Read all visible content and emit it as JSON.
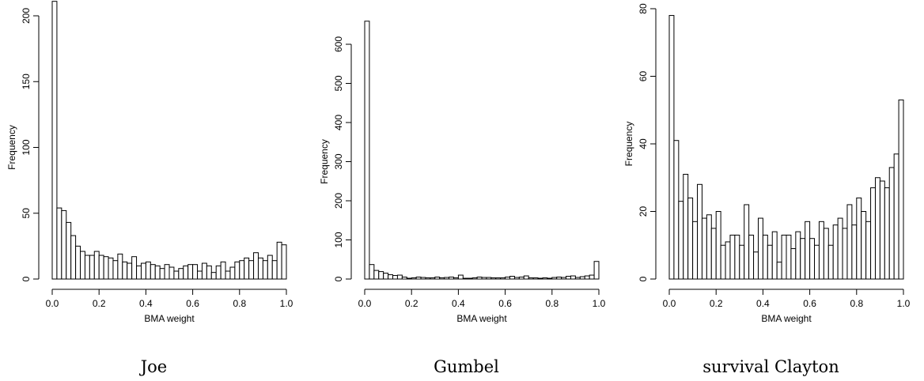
{
  "figure": {
    "panels": [
      "Joe",
      "Gumbel",
      "survival Clayton"
    ]
  },
  "chart_data": [
    {
      "type": "bar",
      "subtype": "histogram",
      "title": "Joe",
      "xlabel": "BMA weight",
      "ylabel": "Frequency",
      "xlim": [
        0,
        1
      ],
      "ylim": [
        0,
        210
      ],
      "xticks": [
        0.0,
        0.2,
        0.4,
        0.6,
        0.8,
        1.0
      ],
      "xtick_labels": [
        "0.0",
        "0.2",
        "0.4",
        "0.6",
        "0.8",
        "1.0"
      ],
      "yticks": [
        0,
        50,
        100,
        150,
        200
      ],
      "ytick_labels": [
        "0",
        "50",
        "100",
        "150",
        "200"
      ],
      "bin_width": 0.02,
      "values": [
        211,
        54,
        52,
        43,
        33,
        25,
        21,
        18,
        18,
        21,
        18,
        17,
        16,
        14,
        19,
        13,
        12,
        17,
        10,
        12,
        13,
        11,
        10,
        8,
        11,
        9,
        6,
        8,
        10,
        11,
        11,
        6,
        12,
        10,
        5,
        10,
        13,
        6,
        9,
        13,
        14,
        16,
        14,
        20,
        16,
        14,
        18,
        14,
        28,
        26
      ]
    },
    {
      "type": "bar",
      "subtype": "histogram",
      "title": "Gumbel",
      "xlabel": "BMA weight",
      "ylabel": "Frequency",
      "xlim": [
        0,
        1
      ],
      "ylim": [
        0,
        650
      ],
      "xticks": [
        0.0,
        0.2,
        0.4,
        0.6,
        0.8,
        1.0
      ],
      "xtick_labels": [
        "0.0",
        "0.2",
        "0.4",
        "0.6",
        "0.8",
        "1.0"
      ],
      "yticks": [
        0,
        100,
        200,
        300,
        400,
        500,
        600
      ],
      "ytick_labels": [
        "0",
        "100",
        "200",
        "300",
        "400",
        "500",
        "600"
      ],
      "bin_width": 0.02,
      "values": [
        659,
        37,
        22,
        19,
        15,
        11,
        9,
        10,
        5,
        2,
        3,
        5,
        4,
        3,
        3,
        5,
        3,
        4,
        5,
        3,
        10,
        2,
        2,
        3,
        5,
        4,
        4,
        3,
        3,
        3,
        5,
        7,
        4,
        5,
        8,
        3,
        3,
        2,
        3,
        2,
        4,
        5,
        4,
        7,
        8,
        4,
        6,
        8,
        10,
        45
      ]
    },
    {
      "type": "bar",
      "subtype": "histogram",
      "title": "survival Clayton",
      "xlabel": "BMA weight",
      "ylabel": "Frequency",
      "xlim": [
        0,
        1
      ],
      "ylim": [
        0,
        80
      ],
      "xticks": [
        0.0,
        0.2,
        0.4,
        0.6,
        0.8,
        1.0
      ],
      "xtick_labels": [
        "0.0",
        "0.2",
        "0.4",
        "0.6",
        "0.8",
        "1.0"
      ],
      "yticks": [
        0,
        20,
        40,
        60,
        80
      ],
      "ytick_labels": [
        "0",
        "20",
        "40",
        "60",
        "80"
      ],
      "bin_width": 0.02,
      "values": [
        78,
        41,
        23,
        31,
        24,
        17,
        28,
        18,
        19,
        15,
        20,
        10,
        11,
        13,
        13,
        10,
        22,
        13,
        8,
        18,
        13,
        10,
        14,
        5,
        13,
        13,
        9,
        14,
        12,
        17,
        12,
        10,
        17,
        15,
        10,
        16,
        18,
        15,
        22,
        16,
        24,
        20,
        17,
        27,
        30,
        29,
        27,
        33,
        37,
        53
      ]
    }
  ]
}
